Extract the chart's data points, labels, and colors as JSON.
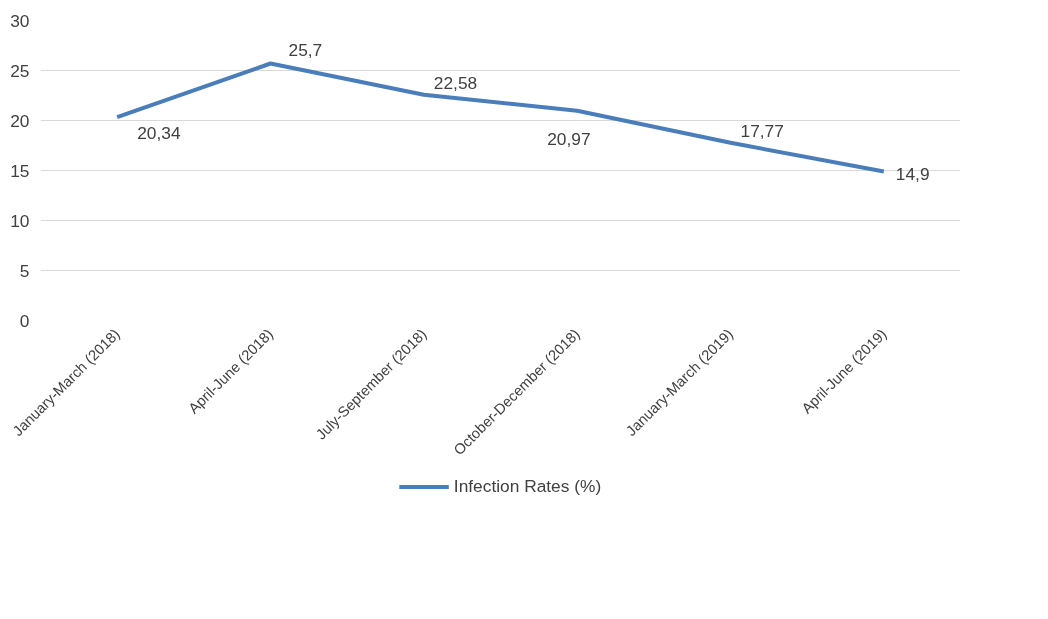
{
  "chart_data": {
    "type": "line",
    "categories": [
      "January-March (2018)",
      "April-June (2018)",
      "July-September (2018)",
      "October-December (2018)",
      "January-March (2019)",
      "April-June (2019)"
    ],
    "series": [
      {
        "name": "Infection Rates (%)",
        "color": "#4a7ebb",
        "values": [
          20.34,
          25.7,
          22.58,
          20.97,
          17.77,
          14.9
        ],
        "value_labels": [
          "20,34",
          "25,7",
          "22,58",
          "20,97",
          "17,77",
          "14,9"
        ]
      }
    ],
    "ylim": [
      0,
      30
    ],
    "yticks": [
      0,
      5,
      10,
      15,
      20,
      25,
      30
    ],
    "grid": "y",
    "legend": "bottom",
    "marker": "none",
    "line_style": "solid"
  }
}
